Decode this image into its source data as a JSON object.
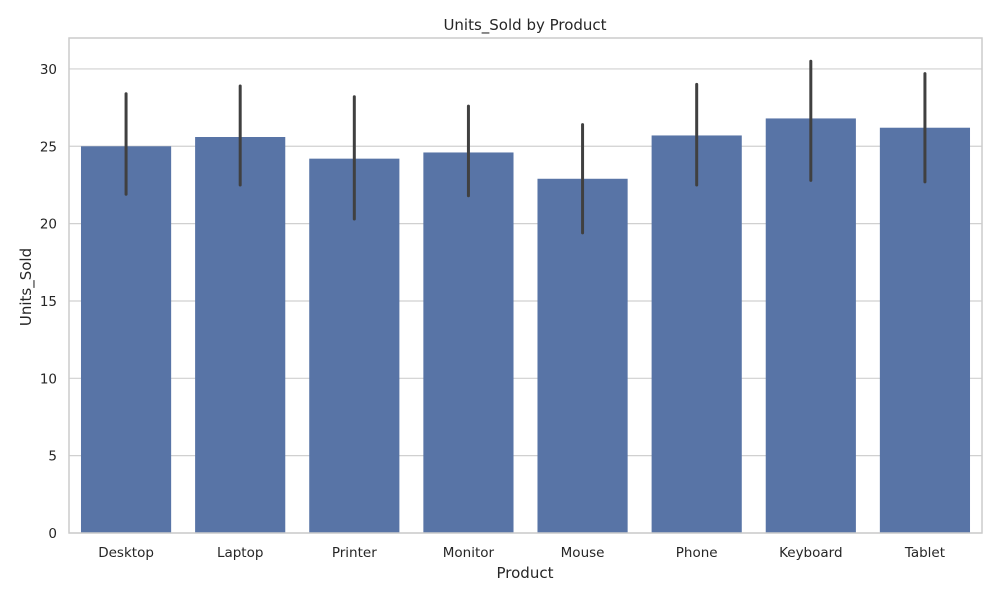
{
  "chart_data": {
    "type": "bar",
    "title": "Units_Sold by Product",
    "xlabel": "Product",
    "ylabel": "Units_Sold",
    "categories": [
      "Desktop",
      "Laptop",
      "Printer",
      "Monitor",
      "Mouse",
      "Phone",
      "Keyboard",
      "Tablet"
    ],
    "values": [
      25.0,
      25.6,
      24.2,
      24.6,
      22.9,
      25.7,
      26.8,
      26.2
    ],
    "error_low": [
      21.9,
      22.5,
      20.3,
      21.8,
      19.4,
      22.5,
      22.8,
      22.7
    ],
    "error_high": [
      28.4,
      28.9,
      28.2,
      27.6,
      26.4,
      29.0,
      30.5,
      29.7
    ],
    "ylim": [
      0,
      32
    ],
    "yticks": [
      0,
      5,
      10,
      15,
      20,
      25,
      30
    ],
    "grid": true,
    "bar_color": "#5874a6",
    "error_color": "#404040"
  }
}
